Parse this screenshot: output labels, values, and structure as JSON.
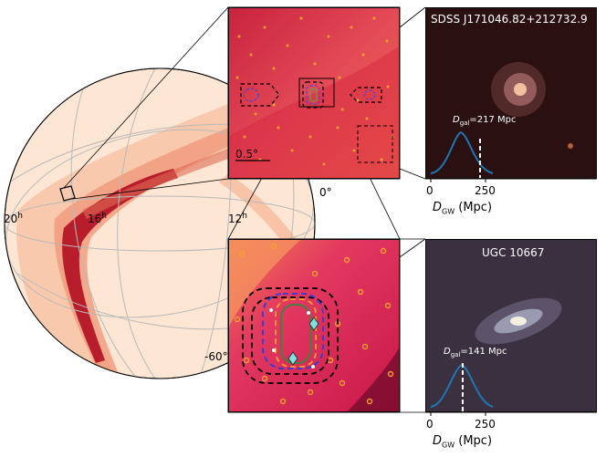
{
  "sky_map": {
    "ra_labels": {
      "ra_20": "20",
      "ra_16": "16",
      "ra_12": "12",
      "unit": "h"
    },
    "dec_labels": {
      "dec_0": "0°",
      "dec_m60": "-60°"
    }
  },
  "zoom_panel_top": {
    "scale_label": "0.5°"
  },
  "galaxy_top": {
    "name": "SDSS J171046.82+212732.9",
    "dgal_symbol": "D",
    "dgal_sub": "gal",
    "dgal_value": "=217 Mpc",
    "tick_0": "0",
    "tick_250": "250",
    "xlabel_symbol": "D",
    "xlabel_sub": "GW",
    "xlabel_unit": " (Mpc)"
  },
  "galaxy_bottom": {
    "name": "UGC 10667",
    "dgal_symbol": "D",
    "dgal_sub": "gal",
    "dgal_value": "=141 Mpc",
    "tick_0": "0",
    "tick_250": "250",
    "xlabel_symbol": "D",
    "xlabel_sub": "GW",
    "xlabel_unit": " (Mpc)"
  },
  "colors": {
    "map_bg": "#fde6d3",
    "map_dark": "#7a0a1a",
    "zoom_bg": "#e23b5a",
    "curve": "#1f77b4"
  }
}
